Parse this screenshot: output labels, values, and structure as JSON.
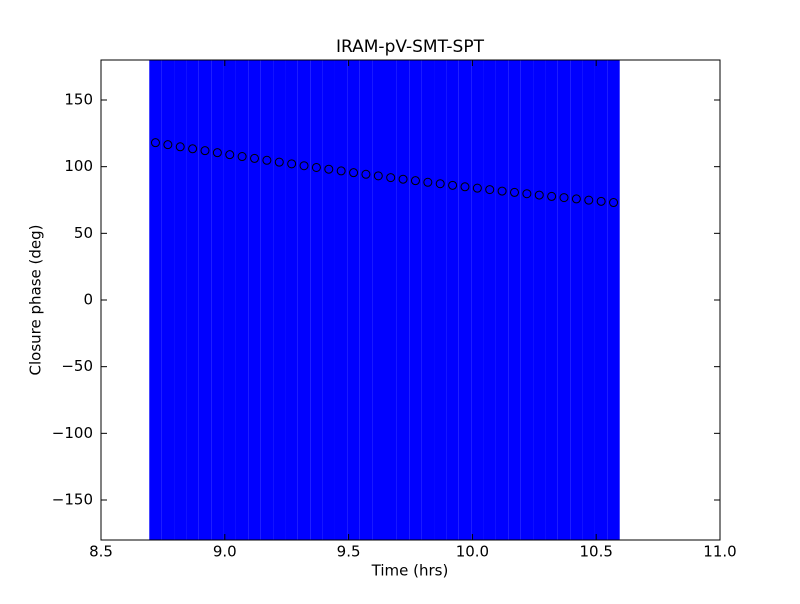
{
  "chart_data": {
    "type": "errorbar_scatter",
    "title": "IRAM-pV-SMT-SPT",
    "xlabel": "Time (hrs)",
    "ylabel": "Closure phase (deg)",
    "xlim": [
      8.5,
      11.0
    ],
    "ylim": [
      -180,
      180
    ],
    "xticks": [
      8.5,
      {
        "value": 9,
        "label": "9.0"
      },
      9.5,
      {
        "value": 10,
        "label": "10.0"
      },
      10.5,
      {
        "value": 11,
        "label": "11.0"
      }
    ],
    "yticks": [
      {
        "value": -150,
        "label": "−150"
      },
      {
        "value": -100,
        "label": "−100"
      },
      {
        "value": -50,
        "label": "−50"
      },
      0,
      50,
      100,
      150
    ],
    "color": "#0000ff",
    "x": [
      8.72,
      8.77,
      8.82,
      8.87,
      8.92,
      8.97,
      9.02,
      9.07,
      9.12,
      9.17,
      9.22,
      9.27,
      9.32,
      9.37,
      9.42,
      9.47,
      9.52,
      9.57,
      9.62,
      9.67,
      9.72,
      9.77,
      9.82,
      9.87,
      9.92,
      9.97,
      10.02,
      10.07,
      10.12,
      10.17,
      10.22,
      10.27,
      10.32,
      10.37,
      10.42,
      10.47,
      10.52,
      10.57
    ],
    "values": [
      118.0,
      116.5,
      114.9,
      113.4,
      112.0,
      110.5,
      109.0,
      107.6,
      106.2,
      104.8,
      103.4,
      102.1,
      100.7,
      99.4,
      98.1,
      96.8,
      95.5,
      94.3,
      93.1,
      91.8,
      90.6,
      89.5,
      88.3,
      87.2,
      86.0,
      84.9,
      83.9,
      82.8,
      81.7,
      80.7,
      79.7,
      78.7,
      77.7,
      76.8,
      75.8,
      74.9,
      74.0,
      73.1
    ],
    "errors": [
      300,
      300,
      300,
      300,
      300,
      300,
      300,
      300,
      300,
      300,
      300,
      300,
      300,
      300,
      300,
      300,
      300,
      300,
      300,
      300,
      300,
      300,
      300,
      300,
      300,
      300,
      300,
      300,
      300,
      300,
      300,
      300,
      300,
      300,
      300,
      300,
      300,
      300
    ]
  }
}
